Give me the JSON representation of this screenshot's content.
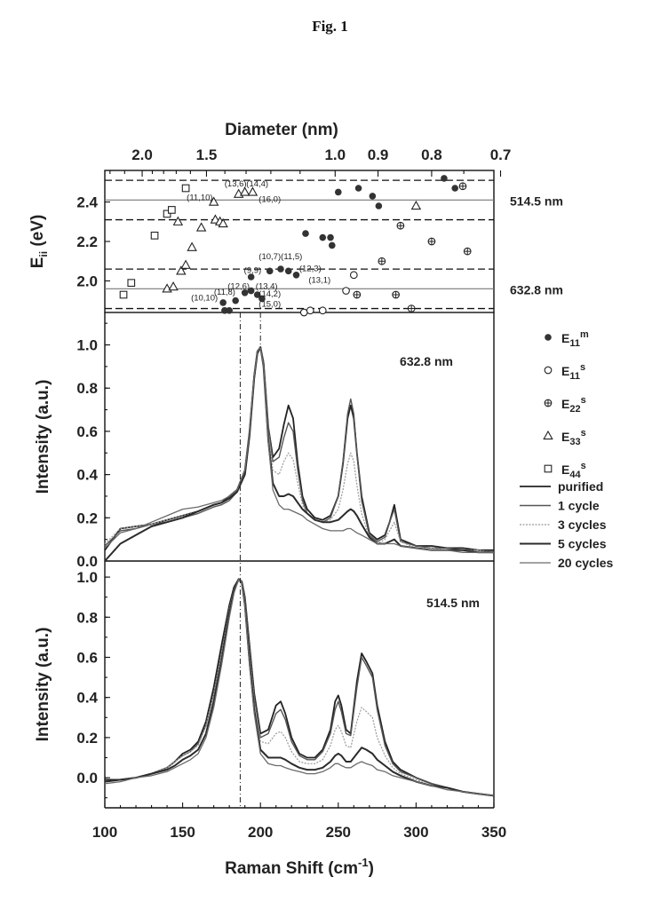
{
  "figure_title": "Fig. 1",
  "chart_data": [
    {
      "type": "scatter",
      "panel": "top",
      "ylabel": "E",
      "ylabel_subscript": "ii",
      "ylabel_unit": " (eV)",
      "ylim": [
        1.84,
        2.56
      ],
      "y_ticks": [
        2.0,
        2.2,
        2.4
      ],
      "x_axis": "Raman Shift (cm-1)",
      "xlim": [
        100,
        350
      ],
      "top_axis": {
        "label": "Diameter (nm)",
        "scale": "reciprocal",
        "ticks": [
          2.0,
          1.5,
          1.0,
          0.9,
          0.8,
          0.7
        ],
        "tick_labels": [
          "2.0",
          "1.5",
          "1.0",
          "0.9",
          "0.8",
          "0.7"
        ],
        "minor_ticks": [
          2.8,
          2.6,
          2.4,
          2.2,
          1.9,
          1.8,
          1.7,
          1.6,
          1.4,
          1.3,
          1.2,
          1.1,
          0.75,
          0.65
        ]
      },
      "laser_lines": [
        {
          "energy": 2.41,
          "label": "514.5 nm",
          "window": [
            2.31,
            2.51
          ]
        },
        {
          "energy": 1.96,
          "label": "632.8 nm",
          "window": [
            1.86,
            2.06
          ]
        }
      ],
      "series": [
        {
          "name": "E11m",
          "symbol": "filled",
          "points": [
            [
              229,
              2.24
            ],
            [
              240,
              2.22
            ],
            [
              245,
              2.22
            ],
            [
              246,
              2.18
            ],
            [
              250,
              2.45
            ],
            [
              263,
              2.47
            ],
            [
              272,
              2.43
            ],
            [
              276,
              2.38
            ],
            [
              318,
              2.52
            ],
            [
              325,
              2.47
            ],
            [
              176,
              1.89
            ],
            [
              180,
              1.85
            ],
            [
              184,
              1.9
            ],
            [
              190,
              1.94
            ],
            [
              194,
              1.95
            ],
            [
              198,
              1.93
            ],
            [
              201,
              1.91
            ],
            [
              206,
              2.05
            ],
            [
              213,
              2.06
            ],
            [
              218,
              2.05
            ],
            [
              223,
              2.03
            ],
            [
              177,
              1.85
            ],
            [
              194,
              2.02
            ]
          ]
        },
        {
          "name": "E11s",
          "symbol": "open-circle",
          "points": [
            [
              228,
              1.84
            ],
            [
              232,
              1.85
            ],
            [
              240,
              1.85
            ],
            [
              255,
              1.95
            ],
            [
              260,
              2.03
            ]
          ]
        },
        {
          "name": "E22s",
          "symbol": "circle-plus",
          "points": [
            [
              262,
              1.93
            ],
            [
              278,
              2.1
            ],
            [
              287,
              1.93
            ],
            [
              290,
              2.28
            ],
            [
              297,
              1.86
            ],
            [
              310,
              2.2
            ],
            [
              330,
              2.48
            ],
            [
              333,
              2.15
            ]
          ]
        },
        {
          "name": "E33s",
          "symbol": "triangle",
          "points": [
            [
              140,
              1.96
            ],
            [
              144,
              1.97
            ],
            [
              147,
              2.3
            ],
            [
              149,
              2.05
            ],
            [
              152,
              2.08
            ],
            [
              156,
              2.17
            ],
            [
              162,
              2.27
            ],
            [
              170,
              2.4
            ],
            [
              171,
              2.31
            ],
            [
              174,
              2.3
            ],
            [
              176,
              2.29
            ],
            [
              186,
              2.44
            ],
            [
              190,
              2.45
            ],
            [
              195,
              2.45
            ],
            [
              300,
              2.38
            ]
          ]
        },
        {
          "name": "E44s",
          "symbol": "square",
          "points": [
            [
              112,
              1.93
            ],
            [
              117,
              1.99
            ],
            [
              132,
              2.23
            ],
            [
              140,
              2.34
            ],
            [
              143,
              2.36
            ],
            [
              152,
              2.47
            ]
          ]
        }
      ],
      "annotations": [
        {
          "text": "(13,6)",
          "x": 184,
          "y": 2.48
        },
        {
          "text": "(14,4)",
          "x": 198,
          "y": 2.48
        },
        {
          "text": "(11,10)",
          "x": 161,
          "y": 2.41
        },
        {
          "text": "(16,0)",
          "x": 206,
          "y": 2.4
        },
        {
          "text": "(10,7)",
          "x": 206,
          "y": 2.11
        },
        {
          "text": "(11,5)",
          "x": 220,
          "y": 2.11
        },
        {
          "text": "(9,9)",
          "x": 195,
          "y": 2.04
        },
        {
          "text": "(12,3)",
          "x": 232,
          "y": 2.05
        },
        {
          "text": "(13,1)",
          "x": 238,
          "y": 1.99
        },
        {
          "text": "(12,6)",
          "x": 186,
          "y": 1.96
        },
        {
          "text": "(13,4)",
          "x": 204,
          "y": 1.96
        },
        {
          "text": "(11,8)",
          "x": 177,
          "y": 1.93
        },
        {
          "text": "(10,10)",
          "x": 164,
          "y": 1.9
        },
        {
          "text": "(14,2)",
          "x": 206,
          "y": 1.92
        },
        {
          "text": "(15,0)",
          "x": 206,
          "y": 1.87
        }
      ],
      "legend": {
        "placement": "right",
        "entries": [
          {
            "symbol": "filled",
            "base": "E",
            "sub": "11",
            "sup": "m"
          },
          {
            "symbol": "open-circle",
            "base": "E",
            "sub": "11",
            "sup": "s"
          },
          {
            "symbol": "circle-plus",
            "base": "E",
            "sub": "22",
            "sup": "s"
          },
          {
            "symbol": "triangle",
            "base": "E",
            "sub": "33",
            "sup": "s"
          },
          {
            "symbol": "square",
            "base": "E",
            "sub": "44",
            "sup": "s"
          }
        ]
      }
    },
    {
      "type": "line",
      "panel": "middle",
      "annotation": "632.8 nm",
      "ylabel": "Intensity (a.u.)",
      "ylim": [
        0.0,
        1.15
      ],
      "y_ticks": [
        0.0,
        0.2,
        0.4,
        0.6,
        0.8,
        1.0
      ],
      "xlim": [
        100,
        350
      ],
      "x": [
        100,
        110,
        120,
        130,
        140,
        150,
        160,
        170,
        175,
        180,
        185,
        190,
        193,
        196,
        198,
        200,
        202,
        205,
        208,
        212,
        215,
        218,
        221,
        224,
        227,
        230,
        235,
        240,
        245,
        250,
        253,
        256,
        258,
        260,
        262,
        265,
        270,
        275,
        280,
        283,
        286,
        290,
        300,
        310,
        320,
        330,
        340,
        350
      ],
      "series": [
        {
          "name": "purified",
          "values": [
            0.05,
            0.15,
            0.16,
            0.17,
            0.19,
            0.21,
            0.23,
            0.26,
            0.27,
            0.3,
            0.33,
            0.42,
            0.6,
            0.86,
            0.97,
            0.99,
            0.92,
            0.62,
            0.48,
            0.52,
            0.63,
            0.72,
            0.66,
            0.45,
            0.3,
            0.24,
            0.2,
            0.19,
            0.21,
            0.3,
            0.45,
            0.66,
            0.72,
            0.66,
            0.5,
            0.3,
            0.13,
            0.1,
            0.12,
            0.18,
            0.26,
            0.1,
            0.07,
            0.07,
            0.06,
            0.06,
            0.05,
            0.05
          ]
        },
        {
          "name": "1 cycle",
          "values": [
            0.07,
            0.14,
            0.15,
            0.17,
            0.18,
            0.2,
            0.22,
            0.25,
            0.26,
            0.28,
            0.32,
            0.4,
            0.58,
            0.84,
            0.96,
            0.99,
            0.92,
            0.62,
            0.46,
            0.48,
            0.57,
            0.64,
            0.6,
            0.42,
            0.28,
            0.22,
            0.19,
            0.18,
            0.2,
            0.3,
            0.46,
            0.68,
            0.75,
            0.68,
            0.5,
            0.28,
            0.12,
            0.09,
            0.11,
            0.18,
            0.24,
            0.09,
            0.07,
            0.06,
            0.06,
            0.05,
            0.05,
            0.04
          ]
        },
        {
          "name": "3 cycles",
          "values": [
            0.08,
            0.15,
            0.16,
            0.17,
            0.19,
            0.21,
            0.23,
            0.26,
            0.27,
            0.29,
            0.32,
            0.4,
            0.58,
            0.85,
            0.96,
            0.99,
            0.92,
            0.6,
            0.42,
            0.4,
            0.46,
            0.5,
            0.47,
            0.36,
            0.26,
            0.22,
            0.19,
            0.18,
            0.19,
            0.24,
            0.33,
            0.45,
            0.5,
            0.46,
            0.35,
            0.22,
            0.11,
            0.08,
            0.1,
            0.14,
            0.18,
            0.09,
            0.06,
            0.06,
            0.05,
            0.05,
            0.05,
            0.04
          ]
        },
        {
          "name": "5 cycles",
          "values": [
            0.0,
            0.08,
            0.12,
            0.16,
            0.18,
            0.2,
            0.23,
            0.26,
            0.27,
            0.29,
            0.32,
            0.4,
            0.58,
            0.85,
            0.96,
            0.99,
            0.9,
            0.56,
            0.36,
            0.3,
            0.3,
            0.31,
            0.3,
            0.27,
            0.24,
            0.22,
            0.19,
            0.18,
            0.18,
            0.19,
            0.21,
            0.23,
            0.24,
            0.23,
            0.21,
            0.17,
            0.11,
            0.08,
            0.08,
            0.09,
            0.1,
            0.07,
            0.06,
            0.05,
            0.05,
            0.05,
            0.04,
            0.04
          ]
        },
        {
          "name": "20 cycles",
          "values": [
            0.06,
            0.13,
            0.15,
            0.18,
            0.21,
            0.24,
            0.25,
            0.27,
            0.28,
            0.3,
            0.33,
            0.42,
            0.6,
            0.86,
            0.97,
            0.99,
            0.9,
            0.55,
            0.33,
            0.26,
            0.24,
            0.24,
            0.23,
            0.22,
            0.21,
            0.19,
            0.17,
            0.15,
            0.14,
            0.14,
            0.14,
            0.15,
            0.15,
            0.14,
            0.13,
            0.12,
            0.1,
            0.08,
            0.08,
            0.08,
            0.08,
            0.07,
            0.06,
            0.05,
            0.05,
            0.04,
            0.04,
            0.04
          ]
        }
      ],
      "legend": {
        "placement": "right",
        "entries": [
          "purified",
          "1 cycle",
          "3 cycles",
          "5 cycles",
          "20 cycles"
        ]
      }
    },
    {
      "type": "line",
      "panel": "bottom",
      "annotation": "514.5 nm",
      "ylabel": "Intensity (a.u.)",
      "xlabel": "Raman Shift (cm",
      "xlabel_sup": "-1",
      "xlabel_end": ")",
      "ylim": [
        -0.15,
        1.08
      ],
      "y_ticks": [
        0.0,
        0.2,
        0.4,
        0.6,
        0.8,
        1.0
      ],
      "xlim": [
        100,
        350
      ],
      "x_ticks": [
        100,
        150,
        200,
        250,
        300,
        350
      ],
      "x": [
        100,
        110,
        120,
        130,
        140,
        145,
        150,
        155,
        160,
        165,
        170,
        175,
        180,
        183,
        186,
        188,
        190,
        193,
        196,
        200,
        205,
        210,
        213,
        216,
        220,
        225,
        230,
        235,
        240,
        245,
        248,
        250,
        252,
        255,
        258,
        262,
        265,
        268,
        272,
        275,
        280,
        285,
        290,
        300,
        310,
        320,
        330,
        340,
        350
      ],
      "series": [
        {
          "name": "purified",
          "values": [
            -0.01,
            -0.01,
            0.0,
            0.02,
            0.05,
            0.08,
            0.12,
            0.14,
            0.18,
            0.28,
            0.45,
            0.66,
            0.86,
            0.95,
            0.99,
            0.98,
            0.9,
            0.66,
            0.42,
            0.22,
            0.24,
            0.36,
            0.38,
            0.32,
            0.2,
            0.12,
            0.1,
            0.1,
            0.14,
            0.24,
            0.38,
            0.41,
            0.36,
            0.24,
            0.22,
            0.48,
            0.62,
            0.58,
            0.52,
            0.36,
            0.18,
            0.08,
            0.04,
            0.0,
            -0.03,
            -0.05,
            -0.07,
            -0.08,
            -0.09
          ]
        },
        {
          "name": "1 cycle",
          "values": [
            -0.02,
            -0.01,
            0.0,
            0.02,
            0.05,
            0.08,
            0.11,
            0.13,
            0.17,
            0.26,
            0.42,
            0.62,
            0.84,
            0.94,
            0.99,
            0.98,
            0.9,
            0.64,
            0.4,
            0.2,
            0.22,
            0.32,
            0.34,
            0.29,
            0.18,
            0.11,
            0.09,
            0.09,
            0.13,
            0.22,
            0.34,
            0.38,
            0.33,
            0.22,
            0.21,
            0.45,
            0.6,
            0.56,
            0.5,
            0.34,
            0.16,
            0.07,
            0.03,
            0.0,
            -0.03,
            -0.05,
            -0.07,
            -0.08,
            -0.09
          ]
        },
        {
          "name": "3 cycles",
          "values": [
            -0.02,
            -0.01,
            0.0,
            0.02,
            0.05,
            0.08,
            0.11,
            0.13,
            0.16,
            0.26,
            0.42,
            0.62,
            0.84,
            0.94,
            0.99,
            0.98,
            0.88,
            0.62,
            0.38,
            0.18,
            0.17,
            0.22,
            0.23,
            0.2,
            0.13,
            0.08,
            0.07,
            0.07,
            0.09,
            0.16,
            0.24,
            0.26,
            0.23,
            0.16,
            0.15,
            0.28,
            0.35,
            0.33,
            0.3,
            0.2,
            0.11,
            0.05,
            0.02,
            -0.01,
            -0.04,
            -0.05,
            -0.07,
            -0.08,
            -0.09
          ]
        },
        {
          "name": "5 cycles",
          "values": [
            -0.02,
            -0.01,
            0.0,
            0.02,
            0.04,
            0.06,
            0.09,
            0.11,
            0.14,
            0.22,
            0.38,
            0.58,
            0.82,
            0.93,
            0.99,
            0.97,
            0.86,
            0.58,
            0.34,
            0.14,
            0.1,
            0.1,
            0.1,
            0.09,
            0.07,
            0.05,
            0.04,
            0.04,
            0.05,
            0.08,
            0.11,
            0.12,
            0.11,
            0.08,
            0.08,
            0.12,
            0.15,
            0.14,
            0.12,
            0.09,
            0.06,
            0.03,
            0.01,
            -0.02,
            -0.04,
            -0.05,
            -0.07,
            -0.08,
            -0.09
          ]
        },
        {
          "name": "20 cycles",
          "values": [
            -0.03,
            -0.02,
            0.0,
            0.01,
            0.03,
            0.05,
            0.07,
            0.09,
            0.12,
            0.2,
            0.35,
            0.56,
            0.8,
            0.92,
            0.99,
            0.97,
            0.85,
            0.56,
            0.32,
            0.12,
            0.07,
            0.06,
            0.06,
            0.05,
            0.04,
            0.03,
            0.02,
            0.02,
            0.03,
            0.05,
            0.07,
            0.07,
            0.06,
            0.05,
            0.05,
            0.07,
            0.08,
            0.07,
            0.06,
            0.04,
            0.03,
            0.01,
            0.0,
            -0.02,
            -0.04,
            -0.06,
            -0.07,
            -0.08,
            -0.09
          ]
        }
      ]
    }
  ],
  "colors": {
    "purified": "#222222",
    "1 cycle": "#555555",
    "3 cycles": "#999999",
    "5 cycles": "#2b2b2b",
    "20 cycles": "#6a6a6a"
  }
}
